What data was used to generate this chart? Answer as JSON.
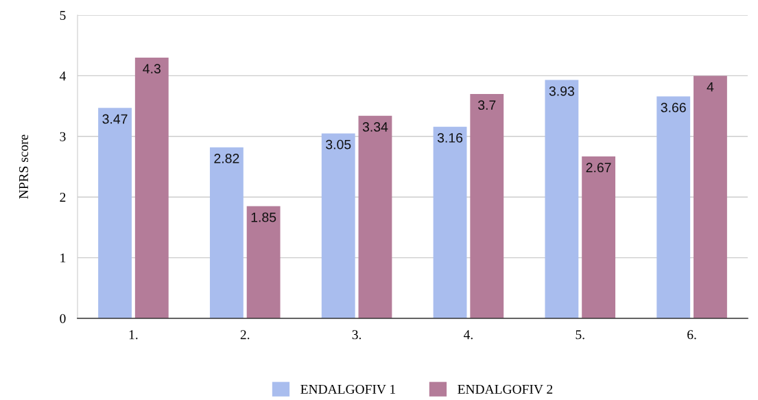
{
  "chart_data": {
    "type": "bar",
    "ylabel": "NPRS score",
    "categories": [
      "1.",
      "2.",
      "3.",
      "4.",
      "5.",
      "6."
    ],
    "series": [
      {
        "name": "ENDALGOFIV 1",
        "color": "#a9bdee",
        "values": [
          3.47,
          2.82,
          3.05,
          3.16,
          3.93,
          3.66
        ]
      },
      {
        "name": "ENDALGOFIV 2",
        "color": "#b47c99",
        "values": [
          4.3,
          1.85,
          3.34,
          3.7,
          2.67,
          4
        ]
      }
    ],
    "ylim": [
      0,
      5
    ],
    "yticks": [
      0,
      1,
      2,
      3,
      4,
      5
    ],
    "grid": "y",
    "legend": "bottom",
    "data_labels": true
  }
}
